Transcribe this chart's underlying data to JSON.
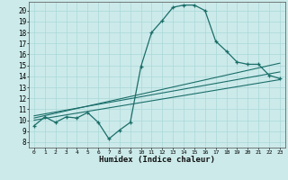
{
  "xlabel": "Humidex (Indice chaleur)",
  "background_color": "#cceaea",
  "line_color": "#1a6e6a",
  "grid_color": "#aad8d8",
  "xlim": [
    -0.5,
    23.5
  ],
  "ylim": [
    7.5,
    20.8
  ],
  "xticks": [
    0,
    1,
    2,
    3,
    4,
    5,
    6,
    7,
    8,
    9,
    10,
    11,
    12,
    13,
    14,
    15,
    16,
    17,
    18,
    19,
    20,
    21,
    22,
    23
  ],
  "yticks": [
    8,
    9,
    10,
    11,
    12,
    13,
    14,
    15,
    16,
    17,
    18,
    19,
    20
  ],
  "main_x": [
    0,
    1,
    2,
    3,
    4,
    5,
    6,
    7,
    8,
    9,
    10,
    11,
    12,
    13,
    14,
    15,
    16,
    17,
    18,
    19,
    20,
    21,
    22,
    23
  ],
  "main_y": [
    9.5,
    10.3,
    9.8,
    10.3,
    10.2,
    10.7,
    9.8,
    8.3,
    9.1,
    9.8,
    14.9,
    18.0,
    19.1,
    20.3,
    20.5,
    20.5,
    20.0,
    17.2,
    16.3,
    15.3,
    15.1,
    15.1,
    14.1,
    13.8
  ],
  "line2_x": [
    0,
    23
  ],
  "line2_y": [
    10.2,
    15.2
  ],
  "line3_x": [
    0,
    23
  ],
  "line3_y": [
    10.0,
    13.7
  ],
  "line4_x": [
    0,
    23
  ],
  "line4_y": [
    10.4,
    14.4
  ]
}
